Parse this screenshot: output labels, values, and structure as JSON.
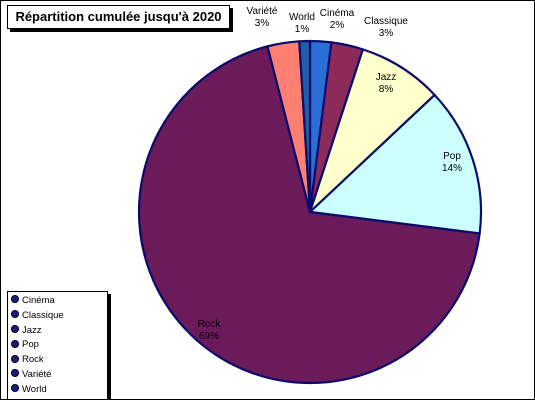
{
  "chart_data": {
    "type": "pie",
    "title": "Répartition cumulée jusqu'à 2020",
    "slices": [
      {
        "name": "Cinéma",
        "value": 2,
        "label": "2%",
        "color": "#2a6fd6"
      },
      {
        "name": "Classique",
        "value": 3,
        "label": "3%",
        "color": "#8c2a5a"
      },
      {
        "name": "Jazz",
        "value": 8,
        "label": "8%",
        "color": "#ffffcc"
      },
      {
        "name": "Pop",
        "value": 14,
        "label": "14%",
        "color": "#ccffff"
      },
      {
        "name": "Rock",
        "value": 69,
        "label": "69%",
        "color": "#6b1a5a"
      },
      {
        "name": "Variété",
        "value": 3,
        "label": "3%",
        "color": "#ff7f70"
      },
      {
        "name": "World",
        "value": 1,
        "label": "1%",
        "color": "#1f5ea8"
      }
    ],
    "legend_position": "bottom-left",
    "slice_border_color": "#0b0b6b"
  }
}
